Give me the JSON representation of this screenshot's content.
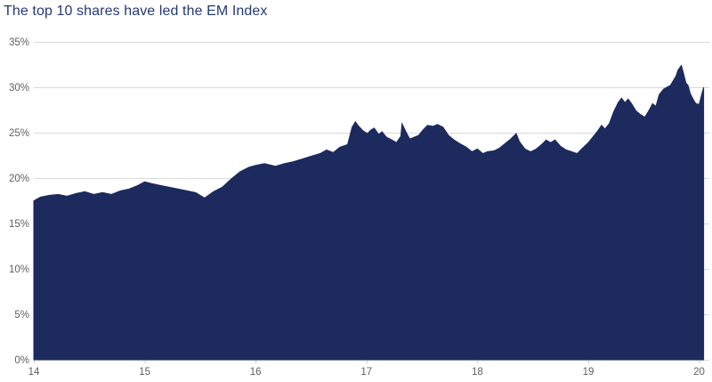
{
  "title": {
    "text": "The top 10 shares have led the EM Index"
  },
  "colors": {
    "title": "#243a76",
    "area_fill": "#1c2a5e",
    "axis_label": "#606060",
    "gridline": "#d9d9d9",
    "tick_mark": "#c6c6c6"
  },
  "chart_data": {
    "type": "area",
    "title": "The top 10 shares have led the EM Index",
    "xlabel": "",
    "ylabel": "",
    "unit": "%",
    "grid": "horizontal-only",
    "legend": "none",
    "x_range": [
      14,
      20.05
    ],
    "y_range": [
      0,
      35
    ],
    "x_ticks": {
      "values": [
        14,
        15,
        16,
        17,
        18,
        19,
        20
      ],
      "labels": [
        "14",
        "15",
        "16",
        "17",
        "18",
        "19",
        "20"
      ]
    },
    "y_ticks": {
      "values": [
        0,
        5,
        10,
        15,
        20,
        25,
        30,
        35
      ],
      "labels": [
        "0%",
        "5%",
        "10%",
        "15%",
        "20%",
        "25%",
        "30%",
        "35%"
      ]
    },
    "x": [
      14.0,
      14.06,
      14.14,
      14.22,
      14.3,
      14.38,
      14.46,
      14.54,
      14.62,
      14.7,
      14.78,
      14.86,
      14.94,
      15.0,
      15.06,
      15.14,
      15.22,
      15.3,
      15.38,
      15.46,
      15.54,
      15.62,
      15.7,
      15.78,
      15.86,
      15.94,
      16.0,
      16.08,
      16.18,
      16.26,
      16.34,
      16.42,
      16.5,
      16.58,
      16.64,
      16.7,
      16.76,
      16.83,
      16.87,
      16.9,
      16.93,
      16.97,
      17.01,
      17.04,
      17.07,
      17.11,
      17.14,
      17.18,
      17.23,
      17.27,
      17.31,
      17.32,
      17.36,
      17.39,
      17.43,
      17.47,
      17.51,
      17.55,
      17.6,
      17.64,
      17.69,
      17.74,
      17.79,
      17.84,
      17.9,
      17.95,
      18.0,
      18.05,
      18.09,
      18.15,
      18.2,
      18.25,
      18.3,
      18.35,
      18.38,
      18.43,
      18.48,
      18.53,
      18.58,
      18.62,
      18.66,
      18.7,
      18.75,
      18.8,
      18.85,
      18.9,
      18.94,
      19.0,
      19.04,
      19.08,
      19.12,
      19.15,
      19.19,
      19.23,
      19.27,
      19.3,
      19.33,
      19.36,
      19.39,
      19.43,
      19.47,
      19.51,
      19.55,
      19.58,
      19.61,
      19.64,
      19.68,
      19.71,
      19.74,
      19.76,
      19.79,
      19.81,
      19.84,
      19.86,
      19.88,
      19.9,
      19.92,
      19.95,
      19.97,
      20.0,
      20.02,
      20.04
    ],
    "values": [
      17.5,
      17.9,
      18.1,
      18.2,
      18.0,
      18.3,
      18.5,
      18.2,
      18.4,
      18.2,
      18.6,
      18.8,
      19.2,
      19.6,
      19.4,
      19.2,
      19.0,
      18.8,
      18.6,
      18.4,
      17.8,
      18.5,
      19.0,
      19.9,
      20.7,
      21.2,
      21.4,
      21.6,
      21.3,
      21.6,
      21.8,
      22.1,
      22.4,
      22.7,
      23.1,
      22.8,
      23.4,
      23.7,
      25.6,
      26.2,
      25.7,
      25.2,
      24.9,
      25.3,
      25.5,
      24.8,
      25.1,
      24.5,
      24.2,
      23.9,
      24.6,
      26.0,
      25.0,
      24.3,
      24.5,
      24.7,
      25.3,
      25.8,
      25.7,
      25.9,
      25.6,
      24.7,
      24.2,
      23.8,
      23.4,
      22.9,
      23.2,
      22.7,
      22.9,
      23.0,
      23.3,
      23.8,
      24.3,
      24.9,
      24.0,
      23.2,
      22.9,
      23.2,
      23.7,
      24.2,
      23.9,
      24.2,
      23.5,
      23.1,
      22.9,
      22.7,
      23.2,
      23.9,
      24.5,
      25.1,
      25.8,
      25.4,
      26.0,
      27.3,
      28.3,
      28.8,
      28.3,
      28.7,
      28.2,
      27.4,
      27.0,
      26.7,
      27.5,
      28.2,
      27.9,
      29.2,
      29.8,
      30.0,
      30.2,
      30.6,
      31.2,
      31.9,
      32.4,
      31.5,
      30.5,
      30.2,
      29.3,
      28.6,
      28.2,
      28.1,
      29.1,
      30.0
    ]
  }
}
